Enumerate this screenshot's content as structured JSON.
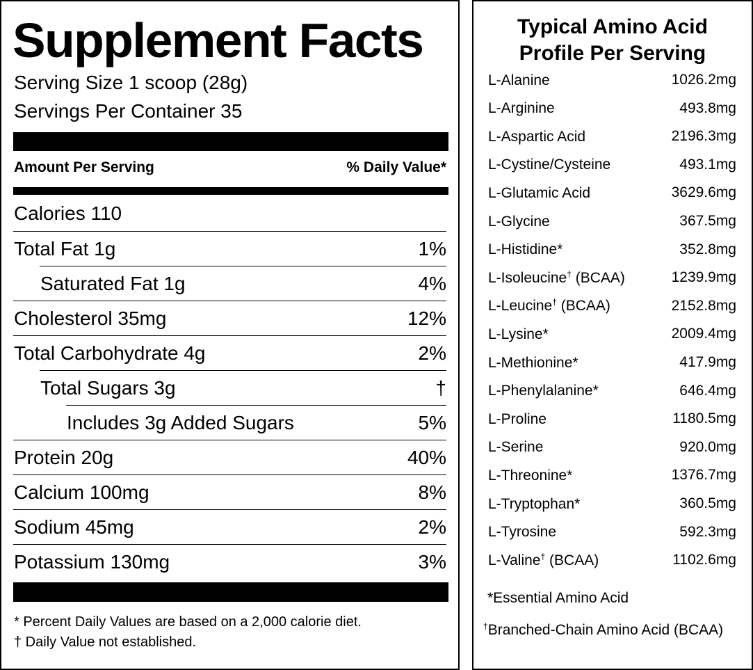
{
  "facts": {
    "title": "Supplement Facts",
    "serving_size": "Serving Size 1 scoop (28g)",
    "servings_per_container": "Servings Per Container 35",
    "amount_header": "Amount Per Serving",
    "dv_header": "% Daily Value*",
    "rows": [
      {
        "label": "Calories 110",
        "dv": "",
        "indent": 0
      },
      {
        "label": "Total Fat 1g",
        "dv": "1%",
        "indent": 0
      },
      {
        "label": "Saturated Fat 1g",
        "dv": "4%",
        "indent": 1
      },
      {
        "label": "Cholesterol 35mg",
        "dv": "12%",
        "indent": 0
      },
      {
        "label": "Total Carbohydrate 4g",
        "dv": "2%",
        "indent": 0
      },
      {
        "label": "Total Sugars 3g",
        "dv": "†",
        "indent": 1
      },
      {
        "label": "Includes 3g Added Sugars",
        "dv": "5%",
        "indent": 2
      },
      {
        "label": "Protein 20g",
        "dv": "40%",
        "indent": 0
      },
      {
        "label": "Calcium 100mg",
        "dv": "8%",
        "indent": 0
      },
      {
        "label": "Sodium 45mg",
        "dv": "2%",
        "indent": 0
      },
      {
        "label": "Potassium 130mg",
        "dv": "3%",
        "indent": 0
      }
    ],
    "footnote1": "* Percent Daily Values are based on a 2,000 calorie diet.",
    "footnote2": "† Daily Value not established."
  },
  "amino": {
    "title_line1": "Typical Amino Acid",
    "title_line2": "Profile Per Serving",
    "rows": [
      {
        "name": "L-Alanine",
        "mark": "",
        "suffix": "",
        "amount": "1026.2mg"
      },
      {
        "name": "L-Arginine",
        "mark": "",
        "suffix": "",
        "amount": "493.8mg"
      },
      {
        "name": "L-Aspartic Acid",
        "mark": "",
        "suffix": "",
        "amount": "2196.3mg"
      },
      {
        "name": "L-Cystine/Cysteine",
        "mark": "",
        "suffix": "",
        "amount": "493.1mg"
      },
      {
        "name": "L-Glutamic Acid",
        "mark": "",
        "suffix": "",
        "amount": "3629.6mg"
      },
      {
        "name": "L-Glycine",
        "mark": "",
        "suffix": "",
        "amount": "367.5mg"
      },
      {
        "name": "L-Histidine*",
        "mark": "",
        "suffix": "",
        "amount": "352.8mg"
      },
      {
        "name": "L-Isoleucine",
        "mark": "†",
        "suffix": " (BCAA)",
        "amount": "1239.9mg"
      },
      {
        "name": "L-Leucine",
        "mark": "†",
        "suffix": " (BCAA)",
        "amount": "2152.8mg"
      },
      {
        "name": "L-Lysine*",
        "mark": "",
        "suffix": "",
        "amount": "2009.4mg"
      },
      {
        "name": "L-Methionine*",
        "mark": "",
        "suffix": "",
        "amount": "417.9mg"
      },
      {
        "name": "L-Phenylalanine*",
        "mark": "",
        "suffix": "",
        "amount": "646.4mg"
      },
      {
        "name": "L-Proline",
        "mark": "",
        "suffix": "",
        "amount": "1180.5mg"
      },
      {
        "name": "L-Serine",
        "mark": "",
        "suffix": "",
        "amount": "920.0mg"
      },
      {
        "name": "L-Threonine*",
        "mark": "",
        "suffix": "",
        "amount": "1376.7mg"
      },
      {
        "name": "L-Tryptophan*",
        "mark": "",
        "suffix": "",
        "amount": "360.5mg"
      },
      {
        "name": "L-Tyrosine",
        "mark": "",
        "suffix": "",
        "amount": "592.3mg"
      },
      {
        "name": "L-Valine",
        "mark": "†",
        "suffix": " (BCAA)",
        "amount": "1102.6mg"
      }
    ],
    "footnote_essential": "*Essential Amino Acid",
    "footnote_bcaa_mark": "†",
    "footnote_bcaa": "Branched-Chain Amino Acid (BCAA)"
  }
}
